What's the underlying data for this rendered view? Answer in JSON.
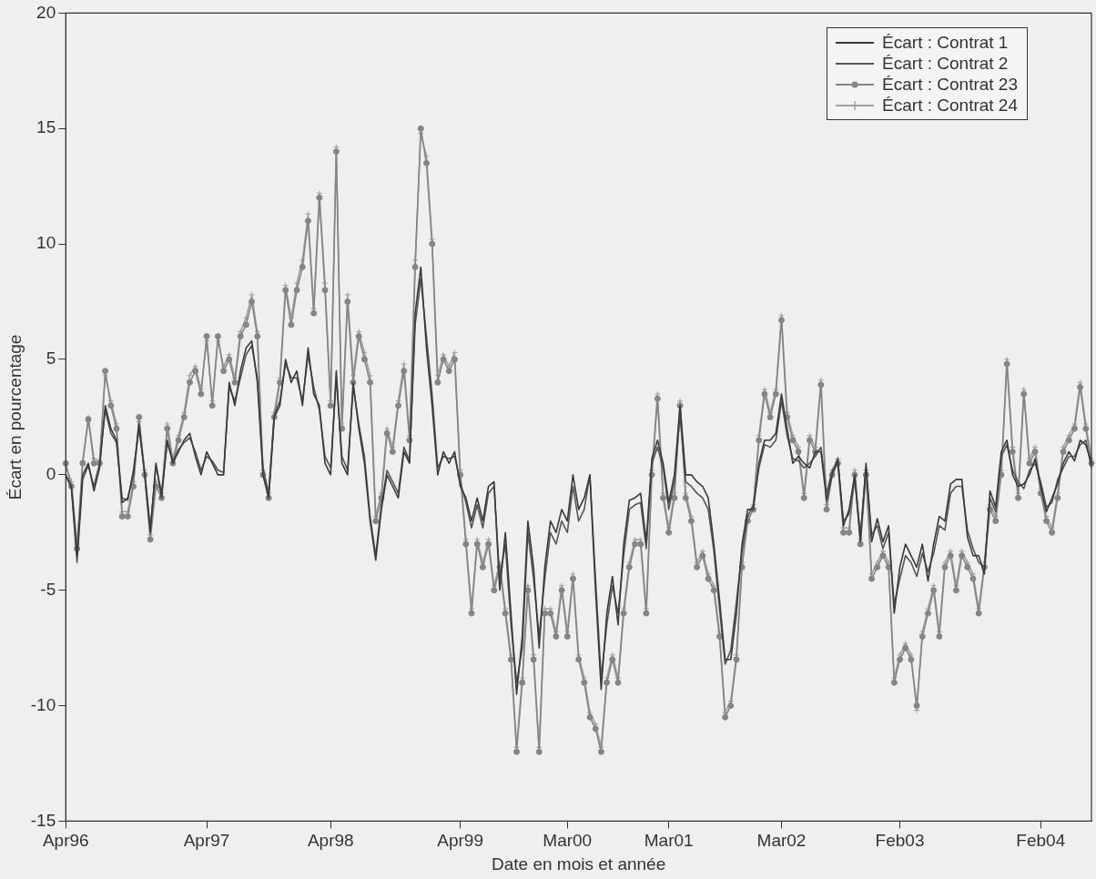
{
  "chart_data": {
    "type": "line",
    "xlabel": "Date en mois et année",
    "ylabel": "Écart en pourcentage",
    "categories": [
      "Apr96",
      null,
      null,
      null,
      null,
      null,
      null,
      null,
      null,
      null,
      null,
      null,
      null,
      null,
      null,
      null,
      null,
      null,
      null,
      null,
      null,
      null,
      null,
      null,
      null,
      "Apr97",
      null,
      null,
      null,
      null,
      null,
      null,
      null,
      null,
      null,
      null,
      null,
      null,
      null,
      null,
      null,
      null,
      null,
      null,
      null,
      null,
      null,
      "Apr98",
      null,
      null,
      null,
      null,
      null,
      null,
      null,
      null,
      null,
      null,
      null,
      null,
      null,
      null,
      null,
      null,
      null,
      null,
      null,
      null,
      null,
      null,
      "Apr99",
      null,
      null,
      null,
      null,
      null,
      null,
      null,
      null,
      null,
      null,
      null,
      null,
      null,
      null,
      null,
      null,
      null,
      null,
      "Mar00",
      null,
      null,
      null,
      null,
      null,
      null,
      null,
      null,
      null,
      null,
      null,
      null,
      null,
      null,
      null,
      null,
      null,
      "Mar01",
      null,
      null,
      null,
      null,
      null,
      null,
      null,
      null,
      null,
      null,
      null,
      null,
      null,
      null,
      null,
      null,
      null,
      null,
      null,
      "Mar02",
      null,
      null,
      null,
      null,
      null,
      null,
      null,
      null,
      null,
      null,
      null,
      null,
      null,
      null,
      null,
      null,
      null,
      null,
      null,
      null,
      "Feb03",
      null,
      null,
      null,
      null,
      null,
      null,
      null,
      null,
      null,
      null,
      null,
      null,
      null,
      null,
      null,
      null,
      null,
      null,
      null,
      null,
      null,
      null,
      null,
      null,
      "Feb04",
      null,
      null,
      null,
      null,
      null,
      null,
      null,
      null,
      null
    ],
    "ylim": [
      -15,
      20
    ],
    "yticks": [
      -15,
      -10,
      -5,
      0,
      5,
      10,
      15,
      20
    ],
    "legend": "top right",
    "line_style": "solid",
    "series": [
      {
        "name": "Écart : Contrat 1",
        "color": "#3a3a3a",
        "marker": "none",
        "values": [
          0,
          -0.5,
          -3.5,
          0,
          0.5,
          -0.7,
          0.3,
          3,
          2,
          1.5,
          -1.2,
          -1,
          0,
          2.2,
          0,
          -2.5,
          0.5,
          -1,
          1.5,
          0.5,
          1,
          1.5,
          1.8,
          0.8,
          0,
          1,
          0.5,
          0,
          0,
          4,
          3,
          4.5,
          5.5,
          5.8,
          4,
          0,
          -1,
          2.5,
          3,
          5,
          4,
          4.5,
          3,
          5.5,
          3.5,
          3,
          0.5,
          0,
          4.5,
          0.5,
          0,
          4,
          2,
          0.5,
          -2,
          -3.7,
          -1.5,
          0,
          -0.5,
          -1,
          1,
          0.5,
          7,
          9,
          5.5,
          3,
          0,
          1,
          0.5,
          1,
          -0.5,
          -1,
          -2,
          -1,
          -2,
          -0.5,
          -0.3,
          -5,
          -2.5,
          -6,
          -9.5,
          -7,
          -2,
          -4,
          -7.5,
          -4,
          -2,
          -2.5,
          -1.5,
          -2,
          0,
          -1.5,
          -1,
          0,
          -5,
          -9.3,
          -6,
          -4.4,
          -6.5,
          -3,
          -1.1,
          -1,
          -0.8,
          -2.9,
          0.7,
          1.5,
          0.5,
          -1.2,
          0,
          3,
          0,
          0,
          -0.3,
          -0.5,
          -1,
          -3,
          -5.4,
          -8,
          -8,
          -6,
          -3,
          -1.5,
          -1.5,
          0.5,
          1.5,
          1.5,
          1.8,
          3.5,
          2,
          0.5,
          0.8,
          0.5,
          0.3,
          1,
          1,
          -1.1,
          0,
          0.7,
          -2.2,
          -1.5,
          0,
          -2.9,
          0.5,
          -2.9,
          -1.9,
          -2.9,
          -2.2,
          -6,
          -4,
          -3,
          -3.5,
          -4,
          -3,
          -4.6,
          -3,
          -1.8,
          -2,
          -0.4,
          -0.2,
          -0.2,
          -2.7,
          -3.5,
          -3.5,
          -4.3,
          -0.7,
          -1.4,
          1,
          1.5,
          0,
          -0.5,
          -0.4,
          0,
          0.7,
          -0.5,
          -1.6,
          -1,
          -0.4,
          0.5,
          1,
          0.6,
          1.5,
          1.3,
          0.5
        ]
      },
      {
        "name": "Écart : Contrat 2",
        "color": "#555555",
        "marker": "none",
        "values": [
          0,
          -0.6,
          -3.8,
          -0.2,
          0.4,
          -0.5,
          0.5,
          2.8,
          1.8,
          1.4,
          -1,
          -1.1,
          0.2,
          2,
          0.1,
          -2.3,
          0.4,
          -0.8,
          1.4,
          0.6,
          1.1,
          1.4,
          1.6,
          1,
          0.2,
          0.8,
          0.6,
          0.2,
          0.1,
          3.8,
          3.2,
          4.2,
          5.2,
          5.6,
          4.2,
          0.3,
          -0.8,
          2.6,
          3.2,
          4.8,
          4.2,
          4.2,
          3.2,
          5.2,
          3.8,
          2.8,
          0.8,
          0.3,
          4.2,
          0.8,
          0.2,
          3.8,
          2.2,
          0.8,
          -1.8,
          -3.5,
          -1.3,
          0.2,
          -0.3,
          -0.8,
          1.2,
          0.6,
          6.5,
          8.5,
          6,
          3.5,
          0.3,
          0.8,
          0.7,
          0.8,
          -0.3,
          -1.2,
          -2.3,
          -1.3,
          -2.3,
          -0.8,
          -0.5,
          -4.5,
          -3,
          -6.5,
          -9,
          -7.5,
          -2.5,
          -4.5,
          -7,
          -4.5,
          -2.5,
          -3,
          -2,
          -2.5,
          -0.5,
          -2,
          -1.5,
          0,
          -4.5,
          -8.8,
          -6.5,
          -4.8,
          -6,
          -3.5,
          -1.5,
          -1.3,
          -1.2,
          -3.2,
          0.5,
          1.2,
          0.3,
          -1.5,
          -0.3,
          2.6,
          -0.3,
          -0.5,
          -0.8,
          -1,
          -1.5,
          -3.3,
          -5.8,
          -8.2,
          -7.6,
          -5.5,
          -3.3,
          -1.8,
          -1.3,
          0.3,
          1.3,
          1.2,
          1.5,
          3.2,
          1.7,
          0.7,
          0.6,
          0.3,
          0.5,
          0.8,
          1.2,
          -0.8,
          0.2,
          0.5,
          -2,
          -1.7,
          -0.2,
          -2.6,
          0.3,
          -2.6,
          -2.2,
          -3.2,
          -2.5,
          -5.6,
          -4.5,
          -3.5,
          -3.8,
          -4.4,
          -3.4,
          -4.2,
          -3.4,
          -2.2,
          -2.4,
          -0.8,
          -0.5,
          -0.5,
          -2.4,
          -3.2,
          -3.8,
          -4,
          -1,
          -1.6,
          0.8,
          1.3,
          0.2,
          -0.3,
          -0.6,
          0.2,
          0.5,
          -0.3,
          -1.4,
          -1.2,
          -0.2,
          0.3,
          0.8,
          0.8,
          1.3,
          1.5,
          0.3
        ]
      },
      {
        "name": "Écart : Contrat 23",
        "color": "#858585",
        "marker": "circle",
        "values": [
          0.5,
          -0.5,
          -3.2,
          0.5,
          2.4,
          0.5,
          0.5,
          4.5,
          3,
          2,
          -1.8,
          -1.8,
          -0.5,
          2.5,
          0,
          -2.8,
          -0.5,
          -1,
          2,
          0.5,
          1.5,
          2.5,
          4,
          4.5,
          3.5,
          6,
          3,
          6,
          4.5,
          5,
          4,
          6,
          6.5,
          7.5,
          6,
          0,
          -1,
          2.5,
          4,
          8,
          6.5,
          8,
          9,
          11,
          7,
          12,
          8,
          3,
          14,
          2,
          7.5,
          4,
          6,
          5,
          4,
          -2,
          -1,
          1.8,
          1,
          3,
          4.5,
          1.5,
          9,
          15,
          13.5,
          10,
          4,
          5,
          4.5,
          5,
          0,
          -3,
          -6,
          -3,
          -4,
          -3,
          -5,
          -4,
          -6,
          -8,
          -12,
          -9,
          -5,
          -8,
          -12,
          -6,
          -6,
          -7,
          -5,
          -7,
          -4.5,
          -8,
          -9,
          -10.5,
          -11,
          -12,
          -9,
          -8,
          -9,
          -6,
          -4,
          -3,
          -3,
          -6,
          0,
          3.3,
          -1,
          -2.5,
          -1,
          3,
          -1,
          -2,
          -4,
          -3.5,
          -4.5,
          -5,
          -7,
          -10.5,
          -10,
          -8,
          -4,
          -2,
          -1.5,
          1.5,
          3.5,
          2.5,
          3.5,
          6.7,
          2.5,
          1.5,
          1,
          -1,
          1.5,
          1,
          3.9,
          -1.5,
          0,
          0.5,
          -2.5,
          -2.5,
          0,
          -3,
          0,
          -4.5,
          -4,
          -3.5,
          -4,
          -9,
          -8,
          -7.5,
          -8,
          -10,
          -7,
          -6,
          -5,
          -7,
          -4,
          -3.5,
          -5,
          -3.5,
          -4,
          -4.5,
          -6,
          -4,
          -1.5,
          -2,
          0,
          4.8,
          1,
          -1,
          3.5,
          0.5,
          1,
          -0.8,
          -2,
          -2.5,
          -1,
          1,
          1.5,
          2,
          3.8,
          2,
          0.5
        ]
      },
      {
        "name": "Écart : Contrat 24",
        "color": "#a0a0a0",
        "marker": "cross",
        "values": [
          0.4,
          -0.3,
          -3,
          0.6,
          2.5,
          0.7,
          0.6,
          4.3,
          3.2,
          2.2,
          -1.6,
          -1.6,
          -0.3,
          2.3,
          0.2,
          -2.6,
          -0.3,
          -0.8,
          2.2,
          0.7,
          1.7,
          2.7,
          4.3,
          4.7,
          3.7,
          5.8,
          3.2,
          5.8,
          4.7,
          5.2,
          4.2,
          6.2,
          6.8,
          7.8,
          6.2,
          0.2,
          -0.8,
          2.7,
          4.2,
          8.2,
          6.8,
          8.3,
          9.3,
          11.3,
          7.2,
          12.2,
          8.3,
          3.2,
          14.2,
          2.2,
          7.8,
          4.3,
          6.2,
          5.3,
          4.3,
          -1.8,
          -0.8,
          2,
          1.2,
          3.2,
          4.8,
          1.7,
          9.3,
          14.8,
          13.8,
          10.2,
          4.3,
          5.2,
          4.7,
          5.3,
          0.2,
          -2.8,
          -5.8,
          -2.8,
          -3.8,
          -2.8,
          -4.8,
          -3.8,
          -5.8,
          -7.8,
          -11.8,
          -8.8,
          -4.8,
          -7.8,
          -11.8,
          -5.8,
          -5.8,
          -6.8,
          -4.8,
          -6.8,
          -4.3,
          -7.8,
          -8.8,
          -10.3,
          -10.8,
          -11.8,
          -8.8,
          -7.8,
          -8.8,
          -5.8,
          -3.8,
          -2.8,
          -2.8,
          -5.8,
          0.2,
          3.5,
          -0.8,
          -2.3,
          -0.8,
          3.2,
          -0.8,
          -1.8,
          -3.8,
          -3.3,
          -4.3,
          -4.8,
          -6.8,
          -10.3,
          -9.8,
          -7.8,
          -3.8,
          -1.8,
          -1.3,
          1.7,
          3.7,
          2.7,
          3.7,
          6.9,
          2.7,
          1.7,
          1.2,
          -0.8,
          1.7,
          1.2,
          4.1,
          -1.3,
          0.2,
          0.7,
          -2.3,
          -2.3,
          0.2,
          -2.8,
          0.2,
          -4.3,
          -3.8,
          -3.3,
          -3.8,
          -8.8,
          -7.8,
          -7.3,
          -7.8,
          -10.2,
          -6.8,
          -5.8,
          -4.8,
          -6.8,
          -3.8,
          -3.3,
          -4.8,
          -3.3,
          -3.8,
          -4.3,
          -5.8,
          -3.8,
          -1.3,
          -1.8,
          0.2,
          5,
          1.2,
          -0.8,
          3.7,
          0.7,
          1.2,
          -0.6,
          -1.8,
          -2.3,
          -0.8,
          1.2,
          1.7,
          2.2,
          4,
          2.2,
          0.7
        ]
      }
    ]
  }
}
